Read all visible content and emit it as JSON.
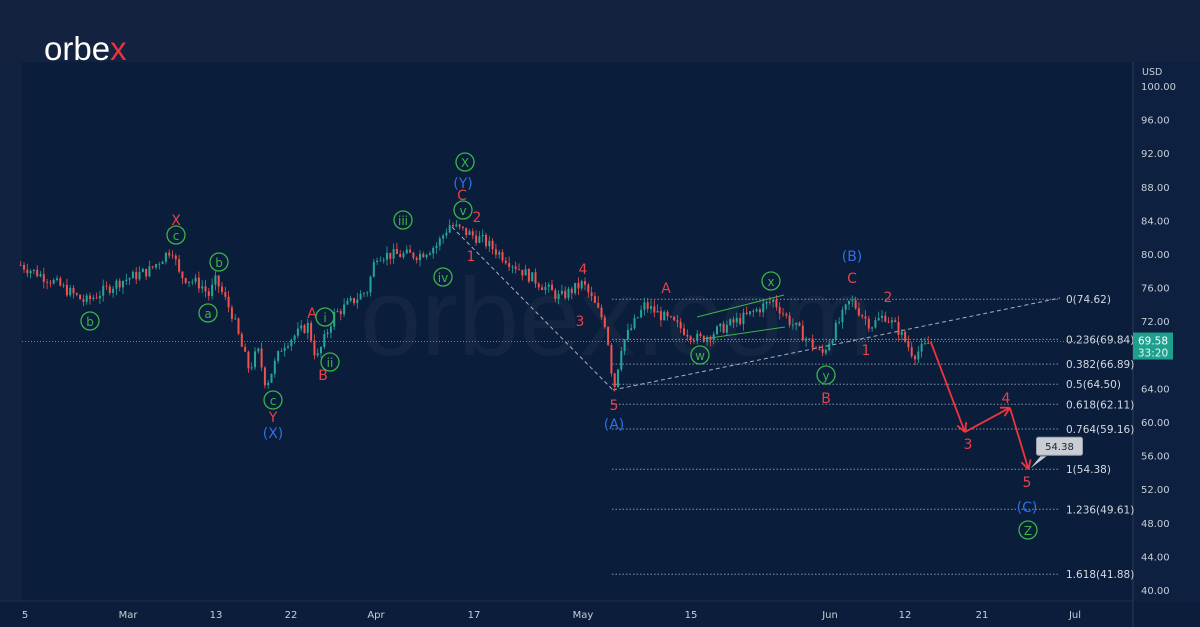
{
  "brand": {
    "name_main": "orbe",
    "name_accent": "x",
    "watermark": "orbex.com"
  },
  "colors": {
    "background": "#0b1d3a",
    "up": "#26a69a",
    "down": "#ef5350",
    "wave_red": "#e8404a",
    "wave_green": "#3bb34a",
    "wave_blue": "#2f6fe8",
    "price_badge": "#1fa08e"
  },
  "chart_data": {
    "type": "candlestick",
    "currency_label": "USD",
    "ylim": [
      40,
      100
    ],
    "y_ticks": [
      "100.00",
      "96.00",
      "92.00",
      "88.00",
      "84.00",
      "80.00",
      "76.00",
      "72.00",
      "64.00",
      "60.00",
      "56.00",
      "52.00",
      "48.00",
      "44.00",
      "40.00"
    ],
    "x_ticks": [
      {
        "label": "5",
        "date": "02-05"
      },
      {
        "label": "Mar",
        "date": "03-01"
      },
      {
        "label": "13",
        "date": "03-13"
      },
      {
        "label": "22",
        "date": "03-22"
      },
      {
        "label": "Apr",
        "date": "04-01"
      },
      {
        "label": "17",
        "date": "04-17"
      },
      {
        "label": "May",
        "date": "05-01"
      },
      {
        "label": "15",
        "date": "05-15"
      },
      {
        "label": "Jun",
        "date": "06-01"
      },
      {
        "label": "12",
        "date": "06-12"
      },
      {
        "label": "21",
        "date": "06-21"
      },
      {
        "label": "Jul",
        "date": "07-01"
      }
    ],
    "price_path": [
      [
        "02-04",
        78.7
      ],
      [
        "02-11",
        76.9
      ],
      [
        "02-19",
        74.3
      ],
      [
        "02-27",
        76.7
      ],
      [
        "03-04",
        78.1
      ],
      [
        "03-07",
        80.7
      ],
      [
        "03-08",
        77.5
      ],
      [
        "03-11",
        76.3
      ],
      [
        "03-12",
        75.1
      ],
      [
        "03-13",
        76.9
      ],
      [
        "03-15",
        72.7
      ],
      [
        "03-16",
        69.2
      ],
      [
        "03-17",
        66.2
      ],
      [
        "03-18",
        68.6
      ],
      [
        "03-19",
        64.4
      ],
      [
        "03-21",
        69.2
      ],
      [
        "03-24",
        71.5
      ],
      [
        "03-25",
        67.4
      ],
      [
        "03-27",
        72.7
      ],
      [
        "03-31",
        75.7
      ],
      [
        "04-01",
        79.9
      ],
      [
        "04-08",
        79.9
      ],
      [
        "04-11",
        81.1
      ],
      [
        "04-13",
        83.5
      ],
      [
        "04-18",
        81.7
      ],
      [
        "04-23",
        78.1
      ],
      [
        "04-28",
        74.8
      ],
      [
        "05-01",
        76.5
      ],
      [
        "05-04",
        71.5
      ],
      [
        "05-05",
        63.8
      ],
      [
        "05-06",
        69.2
      ],
      [
        "05-09",
        73.9
      ],
      [
        "05-14",
        71.0
      ],
      [
        "05-16",
        69.8
      ],
      [
        "05-22",
        72.7
      ],
      [
        "05-25",
        74.5
      ],
      [
        "05-27",
        72.1
      ],
      [
        "05-31",
        68.0
      ],
      [
        "06-04",
        74.5
      ],
      [
        "06-07",
        71.5
      ],
      [
        "06-09",
        72.7
      ],
      [
        "06-11",
        71.0
      ],
      [
        "06-13",
        68.0
      ],
      [
        "06-15",
        69.5
      ]
    ],
    "last_price": "69.58",
    "countdown": "33:20",
    "projection": [
      [
        "06-15",
        69.58
      ],
      [
        "06-19",
        58.8
      ],
      [
        "06-24",
        61.7
      ],
      [
        "06-26",
        54.38
      ]
    ],
    "projection_target_label": "54.38",
    "fib_levels": [
      {
        "ratio": "0",
        "price": 74.62,
        "label": "0(74.62)"
      },
      {
        "ratio": "0.236",
        "price": 69.84,
        "label": "0.236(69.84)"
      },
      {
        "ratio": "0.382",
        "price": 66.89,
        "label": "0.382(66.89)"
      },
      {
        "ratio": "0.5",
        "price": 64.5,
        "label": "0.5(64.50)"
      },
      {
        "ratio": "0.618",
        "price": 62.11,
        "label": "0.618(62.11)"
      },
      {
        "ratio": "0.764",
        "price": 59.16,
        "label": "0.764(59.16)"
      },
      {
        "ratio": "1",
        "price": 54.38,
        "label": "1(54.38)"
      },
      {
        "ratio": "1.236",
        "price": 49.61,
        "label": "1.236(49.61)"
      },
      {
        "ratio": "1.618",
        "price": 41.88,
        "label": "1.618(41.88)"
      }
    ],
    "wave_labels": [
      {
        "text": "b",
        "color": "green",
        "circled": true
      },
      {
        "text": "c",
        "color": "green",
        "circled": true
      },
      {
        "text": "X",
        "color": "red",
        "circled": false
      },
      {
        "text": "a",
        "color": "green",
        "circled": true
      },
      {
        "text": "b",
        "color": "green",
        "circled": true
      },
      {
        "text": "c",
        "color": "green",
        "circled": true
      },
      {
        "text": "Y",
        "color": "red",
        "circled": false
      },
      {
        "text": "(X)",
        "color": "blue",
        "circled": false
      },
      {
        "text": "A",
        "color": "red",
        "circled": false
      },
      {
        "text": "i",
        "color": "green",
        "circled": true
      },
      {
        "text": "ii",
        "color": "green",
        "circled": true
      },
      {
        "text": "B",
        "color": "red",
        "circled": false
      },
      {
        "text": "iii",
        "color": "green",
        "circled": true
      },
      {
        "text": "iv",
        "color": "green",
        "circled": true
      },
      {
        "text": "v",
        "color": "green",
        "circled": true
      },
      {
        "text": "C",
        "color": "red",
        "circled": false
      },
      {
        "text": "(Y)",
        "color": "blue",
        "circled": false
      },
      {
        "text": "X",
        "color": "green",
        "circled": true
      },
      {
        "text": "2",
        "color": "red",
        "circled": false
      },
      {
        "text": "1",
        "color": "red",
        "circled": false
      },
      {
        "text": "4",
        "color": "red",
        "circled": false
      },
      {
        "text": "3",
        "color": "red",
        "circled": false
      },
      {
        "text": "5",
        "color": "red",
        "circled": false
      },
      {
        "text": "(A)",
        "color": "blue",
        "circled": false
      },
      {
        "text": "A",
        "color": "red",
        "circled": false
      },
      {
        "text": "w",
        "color": "green",
        "circled": true
      },
      {
        "text": "x",
        "color": "green",
        "circled": true
      },
      {
        "text": "(B)",
        "color": "blue",
        "circled": false
      },
      {
        "text": "C",
        "color": "red",
        "circled": false
      },
      {
        "text": "2",
        "color": "red",
        "circled": false
      },
      {
        "text": "1",
        "color": "red",
        "circled": false
      },
      {
        "text": "y",
        "color": "green",
        "circled": true
      },
      {
        "text": "B",
        "color": "red",
        "circled": false
      },
      {
        "text": "3",
        "color": "red",
        "circled": false
      },
      {
        "text": "4",
        "color": "red",
        "circled": false
      },
      {
        "text": "5",
        "color": "red",
        "circled": false
      },
      {
        "text": "(C)",
        "color": "blue",
        "circled": false
      },
      {
        "text": "Z",
        "color": "green",
        "circled": true
      }
    ]
  }
}
